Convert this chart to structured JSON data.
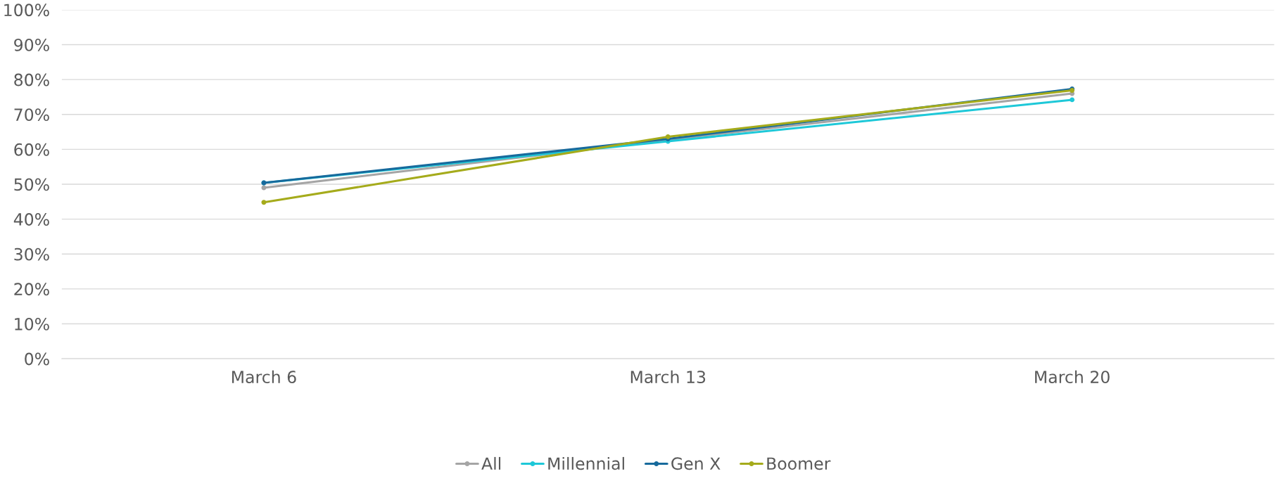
{
  "chart_data": {
    "type": "line",
    "categories": [
      "March 6",
      "March 13",
      "March 20"
    ],
    "series": [
      {
        "name": "All",
        "color": "#a5a5a5",
        "values": [
          49.0,
          62.7,
          76.0
        ]
      },
      {
        "name": "Millennial",
        "color": "#1ec8d8",
        "values": [
          50.4,
          62.3,
          74.2
        ]
      },
      {
        "name": "Gen X",
        "color": "#176a9c",
        "values": [
          50.4,
          63.0,
          77.3
        ]
      },
      {
        "name": "Boomer",
        "color": "#a5ab1b",
        "values": [
          44.8,
          63.6,
          76.9
        ]
      }
    ],
    "ylim": [
      0,
      100
    ],
    "yticks": [
      {
        "value": 0,
        "label": "0%"
      },
      {
        "value": 10,
        "label": "10%"
      },
      {
        "value": 20,
        "label": "20%"
      },
      {
        "value": 30,
        "label": "30%"
      },
      {
        "value": 40,
        "label": "40%"
      },
      {
        "value": 50,
        "label": "50%"
      },
      {
        "value": 60,
        "label": "60%"
      },
      {
        "value": 70,
        "label": "70%"
      },
      {
        "value": 80,
        "label": "80%"
      },
      {
        "value": 90,
        "label": "90%"
      },
      {
        "value": 100,
        "label": "100%"
      }
    ],
    "grid": "y",
    "legend": "bottom",
    "marker": "circle",
    "line_style": "solid"
  }
}
